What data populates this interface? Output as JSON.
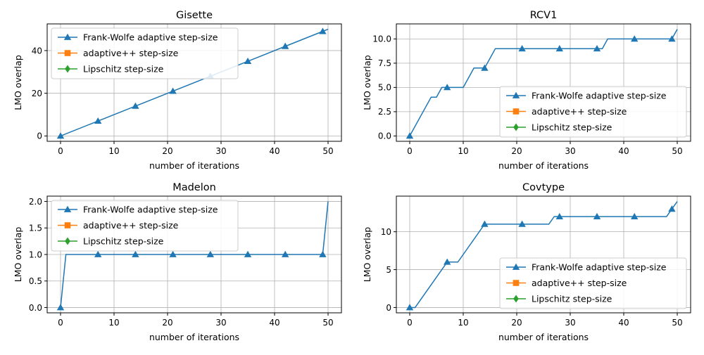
{
  "colors": {
    "fw": "#1f77b4",
    "adaptive": "#ff7f0e",
    "lipschitz": "#2ca02c",
    "grid": "#b0b0b0",
    "axis": "#000000"
  },
  "legend_labels": [
    "Frank-Wolfe adaptive step-size",
    "adaptive++ step-size",
    "Lipschitz step-size"
  ],
  "legend_markers": [
    "triangle-up",
    "square",
    "diamond"
  ],
  "chart_data": [
    {
      "type": "line",
      "title": "Gisette",
      "xlabel": "number of iterations",
      "ylabel": "LMO overlap",
      "xlim": [
        -2.5,
        52.5
      ],
      "ylim": [
        -2.5,
        52.5
      ],
      "xticks": [
        0,
        10,
        20,
        30,
        40,
        50
      ],
      "xtick_labels": [
        "0",
        "10",
        "20",
        "30",
        "40",
        "50"
      ],
      "yticks": [
        0,
        20,
        40
      ],
      "ytick_labels": [
        "0",
        "20",
        "40"
      ],
      "grid": true,
      "legend_position": "upper left",
      "series": [
        {
          "name": "Frank-Wolfe adaptive step-size",
          "marker": "triangle-up",
          "marker_every": 7,
          "x": [
            0,
            7,
            14,
            21,
            28,
            35,
            42,
            49,
            50
          ],
          "y": [
            0,
            7,
            14,
            21,
            28,
            35,
            42,
            49,
            50
          ]
        },
        {
          "name": "adaptive++ step-size",
          "marker": "square",
          "x": [],
          "y": []
        },
        {
          "name": "Lipschitz step-size",
          "marker": "diamond",
          "x": [],
          "y": []
        }
      ]
    },
    {
      "type": "line",
      "title": "RCV1",
      "xlabel": "number of iterations",
      "ylabel": "LMO overlap",
      "xlim": [
        -2.5,
        52.5
      ],
      "ylim": [
        -0.55,
        11.55
      ],
      "xticks": [
        0,
        10,
        20,
        30,
        40,
        50
      ],
      "xtick_labels": [
        "0",
        "10",
        "20",
        "30",
        "40",
        "50"
      ],
      "yticks": [
        0,
        2.5,
        5,
        7.5,
        10
      ],
      "ytick_labels": [
        "0.0",
        "2.5",
        "5.0",
        "7.5",
        "10.0"
      ],
      "grid": true,
      "legend_position": "lower right",
      "series": [
        {
          "name": "Frank-Wolfe adaptive step-size",
          "marker": "triangle-up",
          "marker_every": 7,
          "x": [
            0,
            4,
            5,
            6,
            7,
            8,
            9,
            10,
            11,
            12,
            13,
            14,
            15,
            16,
            17,
            18,
            19,
            20,
            21,
            22,
            23,
            24,
            25,
            26,
            27,
            28,
            29,
            30,
            31,
            32,
            33,
            34,
            35,
            36,
            37,
            38,
            39,
            40,
            41,
            42,
            43,
            44,
            45,
            46,
            47,
            48,
            49,
            50
          ],
          "y": [
            0,
            4,
            4,
            5,
            5,
            5,
            5,
            5,
            6,
            7,
            7,
            7,
            8,
            9,
            9,
            9,
            9,
            9,
            9,
            9,
            9,
            9,
            9,
            9,
            9,
            9,
            9,
            9,
            9,
            9,
            9,
            9,
            9,
            9,
            10,
            10,
            10,
            10,
            10,
            10,
            10,
            10,
            10,
            10,
            10,
            10,
            10,
            11
          ]
        },
        {
          "name": "adaptive++ step-size",
          "marker": "square",
          "x": [],
          "y": []
        },
        {
          "name": "Lipschitz step-size",
          "marker": "diamond",
          "x": [],
          "y": []
        }
      ]
    },
    {
      "type": "line",
      "title": "Madelon",
      "xlabel": "number of iterations",
      "ylabel": "LMO overlap",
      "xlim": [
        -2.5,
        52.5
      ],
      "ylim": [
        -0.1,
        2.1
      ],
      "xticks": [
        0,
        10,
        20,
        30,
        40,
        50
      ],
      "xtick_labels": [
        "0",
        "10",
        "20",
        "30",
        "40",
        "50"
      ],
      "yticks": [
        0,
        0.5,
        1,
        1.5,
        2
      ],
      "ytick_labels": [
        "0.0",
        "0.5",
        "1.0",
        "1.5",
        "2.0"
      ],
      "grid": true,
      "legend_position": "upper left",
      "series": [
        {
          "name": "Frank-Wolfe adaptive step-size",
          "marker": "triangle-up",
          "marker_every": 7,
          "x": [
            0,
            1,
            7,
            14,
            21,
            28,
            35,
            42,
            49,
            50
          ],
          "y": [
            0,
            1,
            1,
            1,
            1,
            1,
            1,
            1,
            1,
            2
          ]
        },
        {
          "name": "adaptive++ step-size",
          "marker": "square",
          "x": [],
          "y": []
        },
        {
          "name": "Lipschitz step-size",
          "marker": "diamond",
          "x": [],
          "y": []
        }
      ]
    },
    {
      "type": "line",
      "title": "Covtype",
      "xlabel": "number of iterations",
      "ylabel": "LMO overlap",
      "xlim": [
        -2.5,
        52.5
      ],
      "ylim": [
        -0.7,
        14.7
      ],
      "xticks": [
        0,
        10,
        20,
        30,
        40,
        50
      ],
      "xtick_labels": [
        "0",
        "10",
        "20",
        "30",
        "40",
        "50"
      ],
      "yticks": [
        0,
        5,
        10
      ],
      "ytick_labels": [
        "0",
        "5",
        "10"
      ],
      "grid": true,
      "legend_position": "lower right",
      "series": [
        {
          "name": "Frank-Wolfe adaptive step-size",
          "marker": "triangle-up",
          "marker_every": 7,
          "x": [
            0,
            1,
            7,
            8,
            9,
            14,
            21,
            26,
            27,
            28,
            35,
            42,
            48,
            49,
            50
          ],
          "y": [
            0,
            0,
            6,
            6,
            6,
            11,
            11,
            11,
            12,
            12,
            12,
            12,
            12,
            13,
            14
          ]
        },
        {
          "name": "adaptive++ step-size",
          "marker": "square",
          "x": [],
          "y": []
        },
        {
          "name": "Lipschitz step-size",
          "marker": "diamond",
          "x": [],
          "y": []
        }
      ]
    }
  ]
}
